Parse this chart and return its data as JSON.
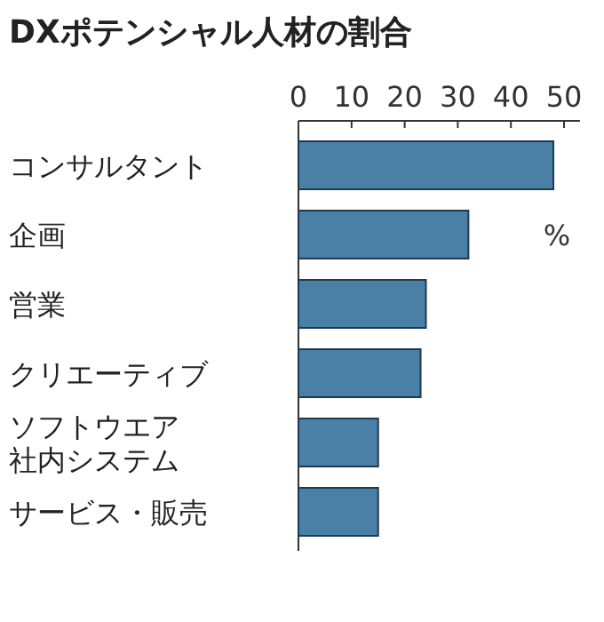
{
  "chart_data": {
    "type": "bar",
    "orientation": "horizontal",
    "title": "DXポテンシャル人材の割合",
    "xlabel": "%",
    "categories": [
      "コンサルタント",
      "企画",
      "営業",
      "クリエーティブ",
      "ソフトウエア社内システム",
      "サービス・販売"
    ],
    "values": [
      48,
      32,
      24,
      23,
      15,
      15
    ],
    "color": "#4a7fa6",
    "xlim": [
      0,
      53
    ],
    "xticks": [
      0,
      10,
      20,
      30,
      40,
      50
    ]
  }
}
